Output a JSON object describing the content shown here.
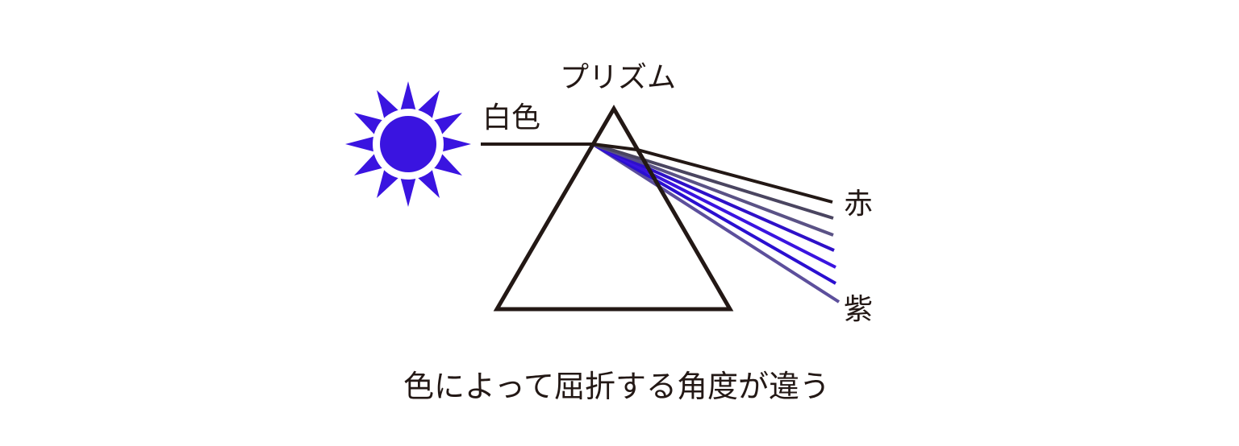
{
  "labels": {
    "prism": "プリズム",
    "white_light": "白色",
    "red": "赤",
    "violet": "紫",
    "caption": "色によって屈折する角度が違う"
  },
  "icons": {
    "light_source": "sun-icon",
    "prism": "triangle-prism"
  },
  "colors": {
    "background": "#ffffff",
    "line": "#231815",
    "sun": "#3a14e0",
    "ray_gray_1": "#4a4560",
    "ray_gray_2": "#5a5286",
    "ray_blue_1": "#2e10c8",
    "ray_blue_2": "#3a14e0",
    "ray_blue_3": "#2a0fd0",
    "ray_gray_3": "#5c4f9c"
  }
}
